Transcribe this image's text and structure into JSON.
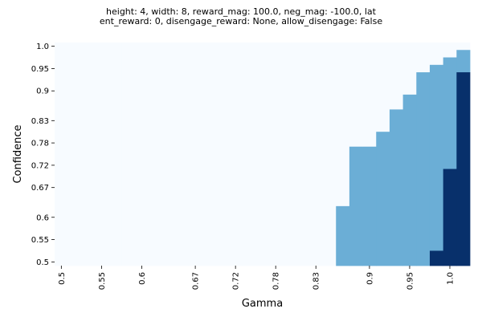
{
  "chart_data": {
    "type": "heatmap",
    "title_line1": "height: 4, width: 8, reward_mag: 100.0, neg_mag: -100.0, lat",
    "title_line2": "ent_reward: 0, disengage_reward: None, allow_disengage: False",
    "xlabel": "Gamma",
    "ylabel": "Confidence",
    "x_tick_labels": [
      "0.5",
      "0.55",
      "0.6",
      "0.67",
      "0.72",
      "0.78",
      "0.83",
      "0.9",
      "0.95",
      "1.0"
    ],
    "y_tick_labels": [
      "1.0",
      "0.95",
      "0.9",
      "0.83",
      "0.78",
      "0.72",
      "0.67",
      "0.6",
      "0.55",
      "0.5"
    ],
    "level_colors": {
      "0": "#f7fbff",
      "1": "#6baed6",
      "2": "#08306b"
    },
    "heatmap_levels_by_column": [
      {
        "column": 1,
        "level_runs": [
          [
            0,
            0,
            29
          ]
        ]
      },
      {
        "column": 2,
        "level_runs": [
          [
            0,
            0,
            29
          ]
        ]
      },
      {
        "column": 3,
        "level_runs": [
          [
            0,
            0,
            29
          ]
        ]
      },
      {
        "column": 4,
        "level_runs": [
          [
            0,
            0,
            29
          ]
        ]
      },
      {
        "column": 5,
        "level_runs": [
          [
            0,
            0,
            29
          ]
        ]
      },
      {
        "column": 6,
        "level_runs": [
          [
            0,
            0,
            29
          ]
        ]
      },
      {
        "column": 7,
        "level_runs": [
          [
            0,
            0,
            29
          ]
        ]
      },
      {
        "column": 8,
        "level_runs": [
          [
            0,
            0,
            29
          ]
        ]
      },
      {
        "column": 9,
        "level_runs": [
          [
            0,
            0,
            29
          ]
        ]
      },
      {
        "column": 10,
        "level_runs": [
          [
            0,
            0,
            29
          ]
        ]
      },
      {
        "column": 11,
        "level_runs": [
          [
            0,
            0,
            29
          ]
        ]
      },
      {
        "column": 12,
        "level_runs": [
          [
            0,
            0,
            29
          ]
        ]
      },
      {
        "column": 13,
        "level_runs": [
          [
            0,
            0,
            29
          ]
        ]
      },
      {
        "column": 14,
        "level_runs": [
          [
            0,
            0,
            29
          ]
        ]
      },
      {
        "column": 15,
        "level_runs": [
          [
            0,
            0,
            29
          ]
        ]
      },
      {
        "column": 16,
        "level_runs": [
          [
            0,
            0,
            29
          ]
        ]
      },
      {
        "column": 17,
        "level_runs": [
          [
            0,
            0,
            29
          ]
        ]
      },
      {
        "column": 18,
        "level_runs": [
          [
            0,
            0,
            29
          ]
        ]
      },
      {
        "column": 19,
        "level_runs": [
          [
            0,
            0,
            29
          ]
        ]
      },
      {
        "column": 20,
        "level_runs": [
          [
            0,
            0,
            29
          ]
        ]
      },
      {
        "column": 21,
        "level_runs": [
          [
            0,
            0,
            29
          ]
        ]
      },
      {
        "column": 22,
        "level_runs": [
          [
            0,
            0,
            21
          ],
          [
            1,
            22,
            29
          ]
        ]
      },
      {
        "column": 23,
        "level_runs": [
          [
            0,
            0,
            13
          ],
          [
            1,
            14,
            29
          ]
        ]
      },
      {
        "column": 24,
        "level_runs": [
          [
            0,
            0,
            13
          ],
          [
            1,
            14,
            29
          ]
        ]
      },
      {
        "column": 25,
        "level_runs": [
          [
            0,
            0,
            11
          ],
          [
            1,
            12,
            29
          ]
        ]
      },
      {
        "column": 26,
        "level_runs": [
          [
            0,
            0,
            8
          ],
          [
            1,
            9,
            29
          ]
        ]
      },
      {
        "column": 27,
        "level_runs": [
          [
            0,
            0,
            6
          ],
          [
            1,
            7,
            29
          ]
        ]
      },
      {
        "column": 28,
        "level_runs": [
          [
            0,
            0,
            3
          ],
          [
            1,
            4,
            29
          ]
        ]
      },
      {
        "column": 29,
        "level_runs": [
          [
            0,
            0,
            2
          ],
          [
            1,
            3,
            27
          ],
          [
            2,
            28,
            29
          ]
        ]
      },
      {
        "column": 30,
        "level_runs": [
          [
            0,
            0,
            1
          ],
          [
            1,
            2,
            16
          ],
          [
            2,
            17,
            29
          ]
        ]
      },
      {
        "column": 31,
        "level_runs": [
          [
            0,
            0,
            0
          ],
          [
            1,
            1,
            3
          ],
          [
            2,
            4,
            29
          ]
        ]
      }
    ]
  }
}
